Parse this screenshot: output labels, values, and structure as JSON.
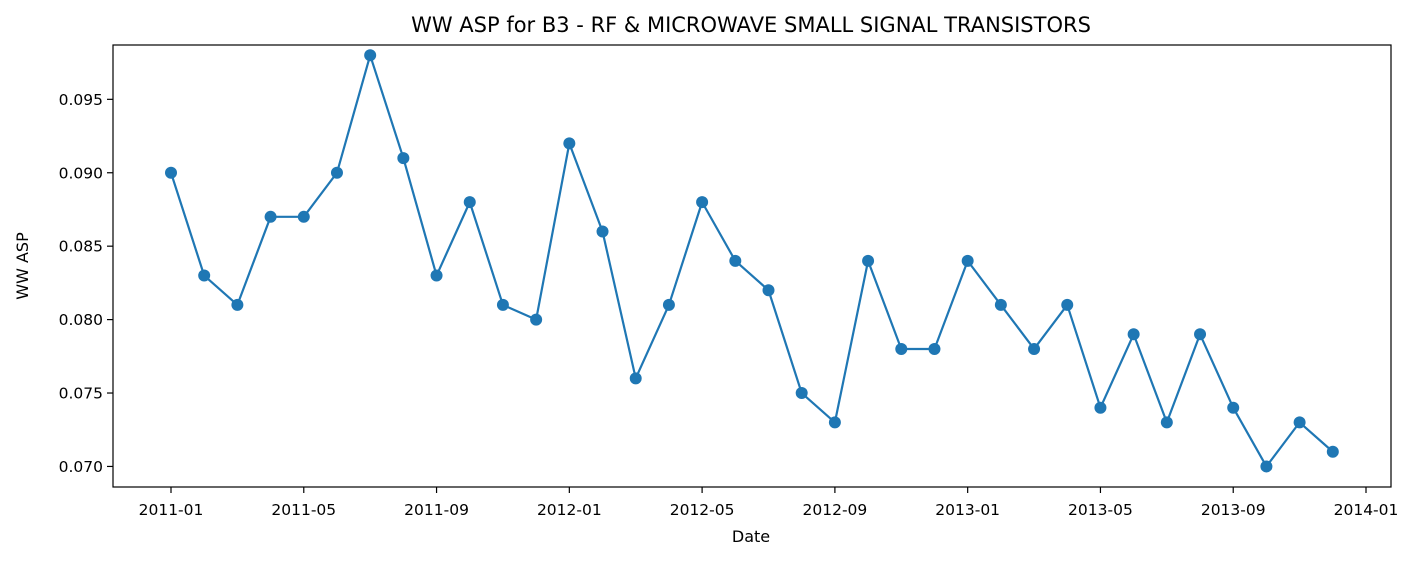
{
  "chart_data": {
    "type": "line",
    "title": "WW ASP for B3 - RF & MICROWAVE SMALL SIGNAL TRANSISTORS",
    "xlabel": "Date",
    "ylabel": "WW ASP",
    "xlim": [
      "2010-12-01",
      "2014-01-01"
    ],
    "ylim": [
      0.0686,
      0.0987
    ],
    "grid": false,
    "legend": "none",
    "x_ticks": [
      "2011-01",
      "2011-05",
      "2011-09",
      "2012-01",
      "2012-05",
      "2012-09",
      "2013-01",
      "2013-05",
      "2013-09",
      "2014-01"
    ],
    "y_ticks": [
      "0.070",
      "0.075",
      "0.080",
      "0.085",
      "0.090",
      "0.095"
    ],
    "series": [
      {
        "color": "#1f77b4",
        "marker": "circle",
        "x": [
          "2011-01",
          "2011-02",
          "2011-03",
          "2011-04",
          "2011-05",
          "2011-06",
          "2011-07",
          "2011-08",
          "2011-09",
          "2011-10",
          "2011-11",
          "2011-12",
          "2012-01",
          "2012-02",
          "2012-03",
          "2012-04",
          "2012-05",
          "2012-06",
          "2012-07",
          "2012-08",
          "2012-09",
          "2012-10",
          "2012-11",
          "2012-12",
          "2013-01",
          "2013-02",
          "2013-03",
          "2013-04",
          "2013-05",
          "2013-06",
          "2013-07",
          "2013-08",
          "2013-09",
          "2013-10",
          "2013-11",
          "2013-12"
        ],
        "y": [
          0.09,
          0.083,
          0.081,
          0.087,
          0.087,
          0.09,
          0.098,
          0.091,
          0.083,
          0.088,
          0.081,
          0.08,
          0.092,
          0.086,
          0.076,
          0.081,
          0.088,
          0.084,
          0.082,
          0.075,
          0.073,
          0.084,
          0.078,
          0.078,
          0.084,
          0.081,
          0.078,
          0.081,
          0.074,
          0.079,
          0.073,
          0.079,
          0.074,
          0.07,
          0.073,
          0.071
        ]
      }
    ]
  }
}
